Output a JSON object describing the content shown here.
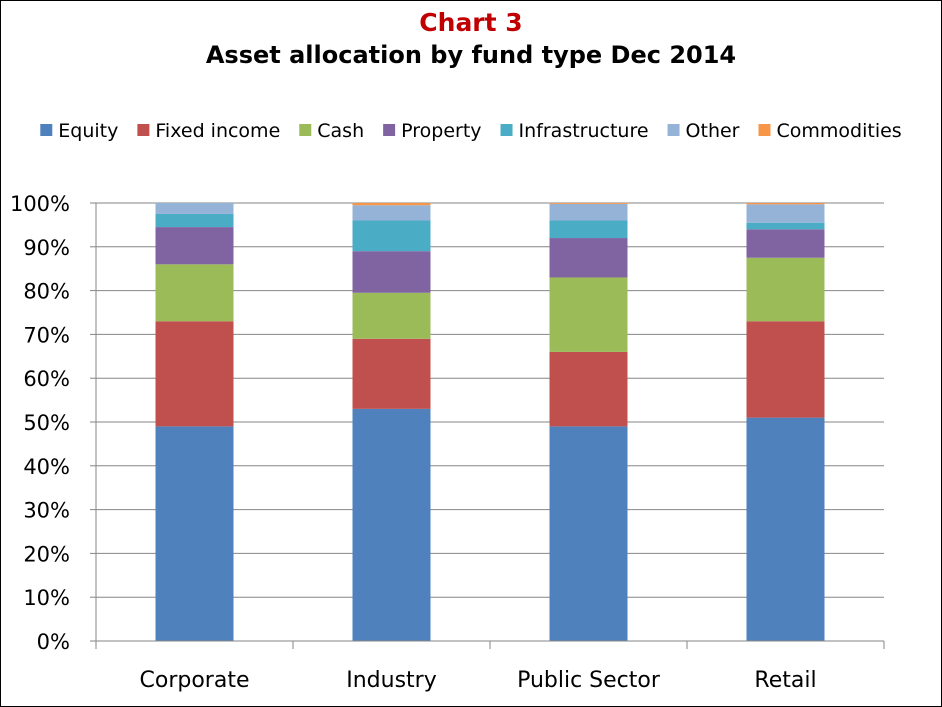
{
  "chart_data": {
    "type": "bar",
    "stacked": true,
    "title": "Chart 3",
    "subtitle": "Asset allocation by fund type Dec 2014",
    "categories": [
      "Corporate",
      "Industry",
      "Public Sector",
      "Retail"
    ],
    "series": [
      {
        "name": "Equity",
        "color": "#4F81BD",
        "values": [
          49,
          53,
          49,
          51
        ]
      },
      {
        "name": "Fixed income",
        "color": "#C0504D",
        "values": [
          24,
          16,
          17,
          22
        ]
      },
      {
        "name": "Cash",
        "color": "#9BBB59",
        "values": [
          13,
          10.5,
          17,
          14.5
        ]
      },
      {
        "name": "Property",
        "color": "#8064A2",
        "values": [
          8.5,
          9.5,
          9,
          6.5
        ]
      },
      {
        "name": "Infrastructure",
        "color": "#4BACC6",
        "values": [
          3,
          7,
          4,
          1.5
        ]
      },
      {
        "name": "Other",
        "color": "#95B3D7",
        "values": [
          2.5,
          3.5,
          3.8,
          4.2
        ]
      },
      {
        "name": "Commodities",
        "color": "#F79646",
        "values": [
          0,
          0.5,
          0.2,
          0.3
        ]
      }
    ],
    "y_ticks": [
      "0%",
      "10%",
      "20%",
      "30%",
      "40%",
      "50%",
      "60%",
      "70%",
      "80%",
      "90%",
      "100%"
    ],
    "ylim": [
      0,
      100
    ],
    "title_color": "#C00000",
    "grid": true,
    "legend_position": "top"
  }
}
